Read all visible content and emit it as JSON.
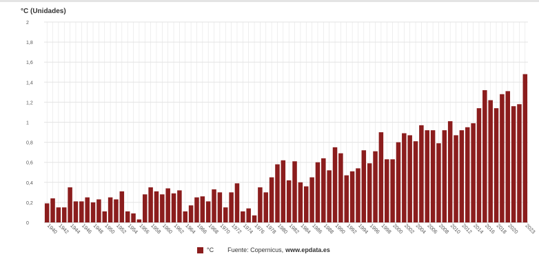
{
  "chart_data": {
    "type": "bar",
    "unit_label": "°C (Unidades)",
    "categories": [
      "1940",
      "1941",
      "1942",
      "1943",
      "1944",
      "1945",
      "1946",
      "1947",
      "1948",
      "1949",
      "1950",
      "1951",
      "1952",
      "1953",
      "1954",
      "1955",
      "1956",
      "1957",
      "1958",
      "1959",
      "1960",
      "1961",
      "1962",
      "1963",
      "1964",
      "1965",
      "1966",
      "1967",
      "1968",
      "1969",
      "1970",
      "1971",
      "1972",
      "1973",
      "1974",
      "1975",
      "1976",
      "1977",
      "1978",
      "1979",
      "1980",
      "1981",
      "1982",
      "1983",
      "1984",
      "1985",
      "1986",
      "1987",
      "1988",
      "1989",
      "1990",
      "1991",
      "1992",
      "1993",
      "1994",
      "1995",
      "1996",
      "1997",
      "1998",
      "1999",
      "2000",
      "2001",
      "2002",
      "2003",
      "2004",
      "2005",
      "2006",
      "2007",
      "2008",
      "2009",
      "2010",
      "2011",
      "2012",
      "2013",
      "2014",
      "2015",
      "2016",
      "2017",
      "2018",
      "2019",
      "2020",
      "2021",
      "2022",
      "2023"
    ],
    "tick_labels": [
      "1940",
      "1942",
      "1944",
      "1946",
      "1948",
      "1950",
      "1952",
      "1954",
      "1956",
      "1958",
      "1960",
      "1962",
      "1964",
      "1966",
      "1968",
      "1970",
      "1972",
      "1974",
      "1976",
      "1978",
      "1980",
      "1982",
      "1984",
      "1986",
      "1988",
      "1990",
      "1992",
      "1994",
      "1996",
      "1998",
      "2000",
      "2002",
      "2004",
      "2006",
      "2008",
      "2010",
      "2012",
      "2014",
      "2016",
      "2018",
      "2020",
      "2023"
    ],
    "series": [
      {
        "name": "°C",
        "values": [
          0.19,
          0.24,
          0.15,
          0.15,
          0.35,
          0.21,
          0.21,
          0.25,
          0.2,
          0.23,
          0.11,
          0.25,
          0.23,
          0.31,
          0.11,
          0.09,
          0.03,
          0.28,
          0.35,
          0.31,
          0.28,
          0.34,
          0.29,
          0.32,
          0.11,
          0.17,
          0.25,
          0.26,
          0.21,
          0.33,
          0.3,
          0.15,
          0.3,
          0.39,
          0.11,
          0.14,
          0.07,
          0.35,
          0.3,
          0.45,
          0.58,
          0.62,
          0.42,
          0.61,
          0.4,
          0.36,
          0.45,
          0.6,
          0.64,
          0.52,
          0.75,
          0.69,
          0.47,
          0.51,
          0.54,
          0.72,
          0.59,
          0.71,
          0.9,
          0.63,
          0.63,
          0.8,
          0.89,
          0.87,
          0.81,
          0.97,
          0.92,
          0.92,
          0.79,
          0.92,
          1.01,
          0.87,
          0.92,
          0.95,
          0.99,
          1.14,
          1.32,
          1.22,
          1.14,
          1.28,
          1.31,
          1.16,
          1.18,
          1.48
        ]
      }
    ],
    "ylim": [
      0,
      2
    ],
    "yticks": [
      "0",
      "0,2",
      "0,4",
      "0,6",
      "0,8",
      "1",
      "1,2",
      "1,4",
      "1,6",
      "1,8",
      "2"
    ],
    "grid": true,
    "legend_position": "bottom"
  },
  "colors": {
    "bar": "#8b1d1d",
    "grid": "#e3e3e3",
    "axis_text": "#555555"
  },
  "legend": {
    "series_label": "°C",
    "source_prefix": "Fuente: Copernicus,",
    "source_site": "www.epdata.es"
  }
}
